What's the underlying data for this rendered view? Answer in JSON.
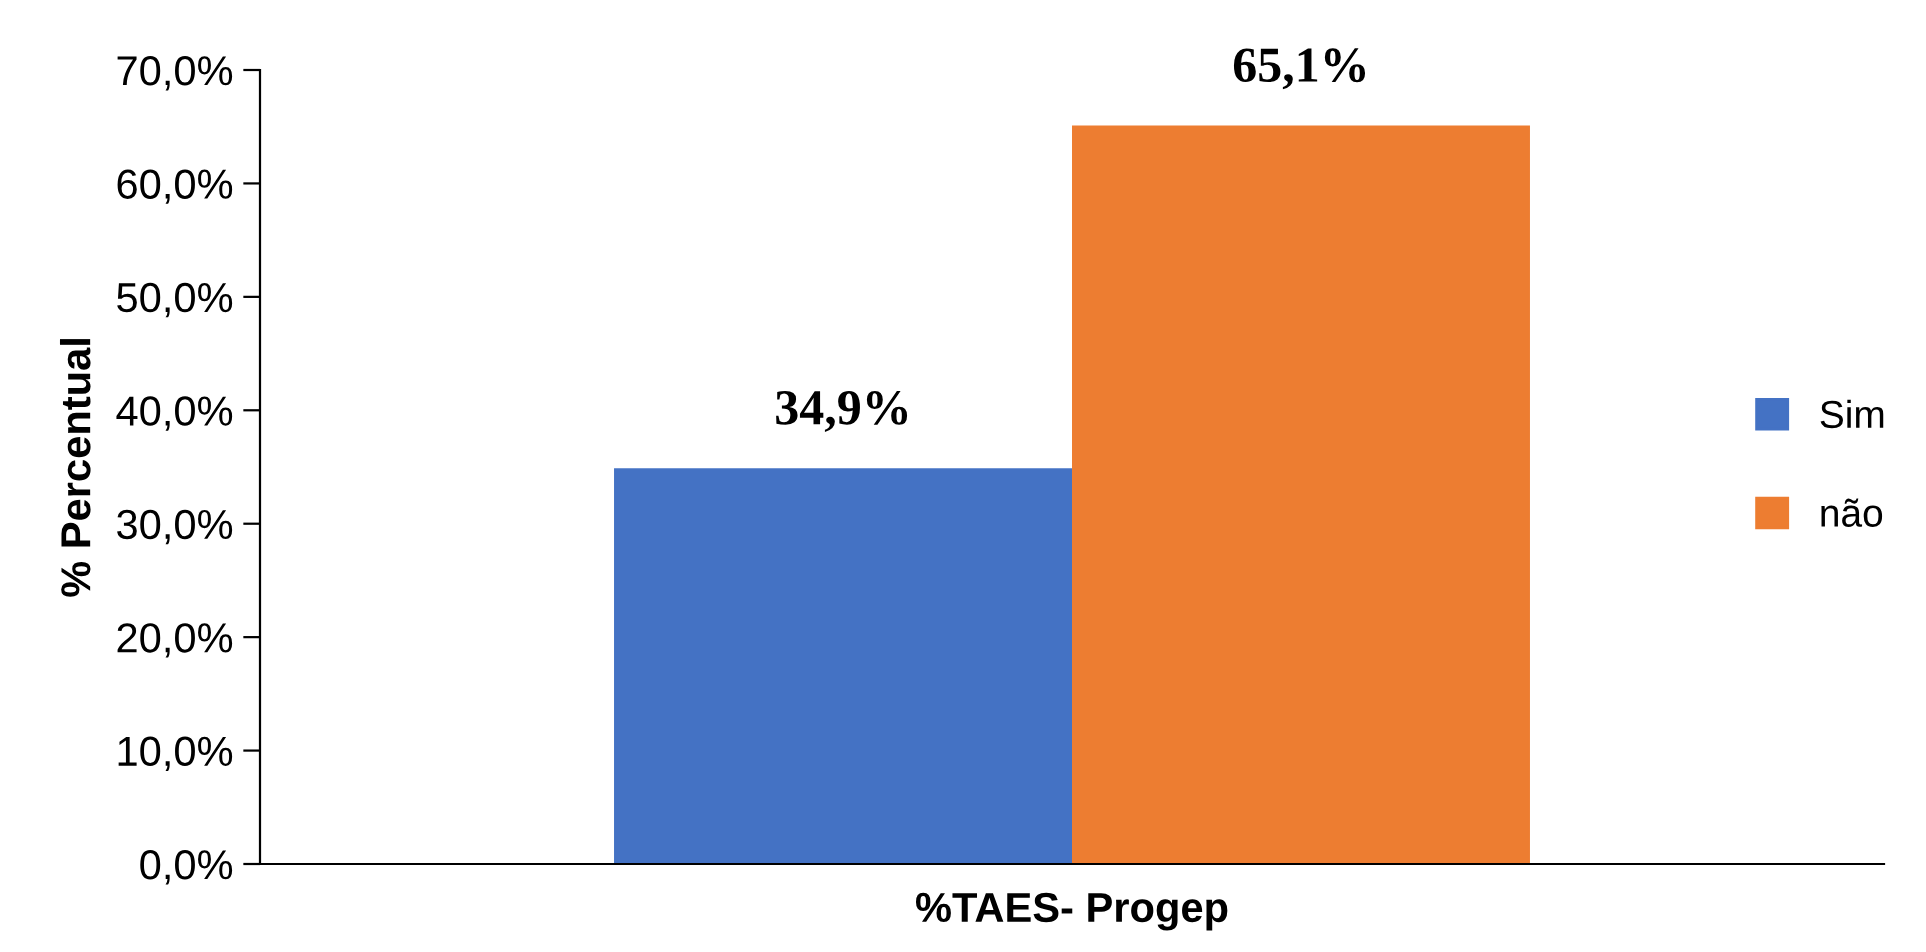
{
  "chart_data": {
    "type": "bar",
    "ylabel": "% Percentual",
    "categories": [
      "%TAES- Progep"
    ],
    "series": [
      {
        "name": "Sim",
        "color": "#4472c4",
        "values": [
          34.9
        ],
        "value_labels": [
          "34,9%"
        ]
      },
      {
        "name": "não",
        "color": "#ed7d31",
        "values": [
          65.1
        ],
        "value_labels": [
          "65,1%"
        ]
      }
    ],
    "ylim": [
      0,
      70
    ],
    "yticks": [
      {
        "value": 0,
        "label": "0,0%"
      },
      {
        "value": 10,
        "label": "10,0%"
      },
      {
        "value": 20,
        "label": "20,0%"
      },
      {
        "value": 30,
        "label": "30,0%"
      },
      {
        "value": 40,
        "label": "40,0%"
      },
      {
        "value": 50,
        "label": "50,0%"
      },
      {
        "value": 60,
        "label": "60,0%"
      },
      {
        "value": 70,
        "label": "70,0%"
      }
    ],
    "grid": false,
    "legend": "right"
  }
}
